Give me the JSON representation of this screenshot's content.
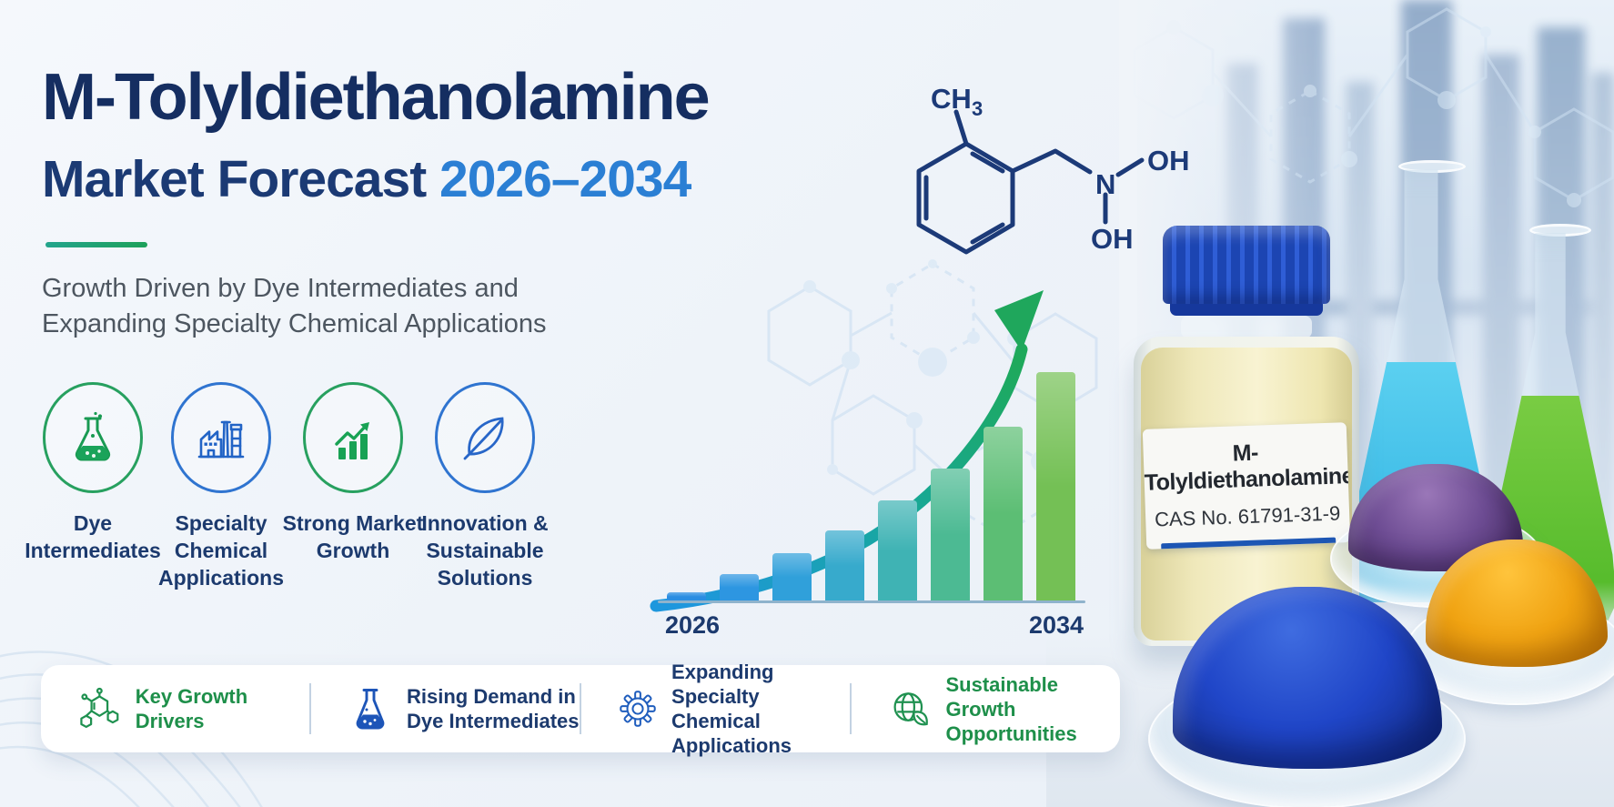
{
  "header": {
    "title": "M-Tolyldiethanolamine",
    "subtitle_prefix": "Market Forecast",
    "subtitle_years": "2026–2034",
    "tagline_line1": "Growth Driven by Dye Intermediates and",
    "tagline_line2": "Expanding Specialty Chemical Applications"
  },
  "features": [
    {
      "icon": "flask-icon",
      "accent": "green",
      "lines": [
        "Dye",
        "Intermediates"
      ]
    },
    {
      "icon": "factory-icon",
      "accent": "blue",
      "lines": [
        "Specialty",
        "Chemical",
        "Applications"
      ]
    },
    {
      "icon": "growth-chart-icon",
      "accent": "green",
      "lines": [
        "Strong Market",
        "Growth"
      ]
    },
    {
      "icon": "leaf-icon",
      "accent": "blue",
      "lines": [
        "Innovation &",
        "Sustainable",
        "Solutions"
      ]
    }
  ],
  "chart_data": {
    "type": "bar",
    "description": "Stylized market growth bars with upward curved trend arrow, no numeric axis shown",
    "tick_labels": [
      "2026",
      "2034"
    ],
    "bar_count": 8,
    "relative_heights_pct": [
      4,
      12,
      21,
      31,
      44,
      58,
      76,
      100
    ],
    "bar_colors": [
      "#2a8de2",
      "#2d96e1",
      "#30a0da",
      "#37aacc",
      "#3fb3b4",
      "#4cba93",
      "#5cbe74",
      "#74c055"
    ],
    "arrow_gradient": [
      "#1e97dd",
      "#1ea95b"
    ],
    "grid": false,
    "legend": false
  },
  "molecule": {
    "ch": "CH",
    "ch_subscript": "3",
    "n": "N",
    "oh_top": "OH",
    "oh_bottom": "OH"
  },
  "bottle": {
    "label_title": "M-Tolyldiethanolamine",
    "label_cas": "CAS No. 61791-31-9"
  },
  "footer": {
    "items": [
      {
        "icon": "molecule-icon",
        "accent": "green",
        "lines": [
          "Key Growth Drivers"
        ]
      },
      {
        "icon": "flask-icon",
        "accent": "navy",
        "lines": [
          "Rising Demand in",
          "Dye Intermediates"
        ]
      },
      {
        "icon": "gear-icon",
        "accent": "navy",
        "lines": [
          "Expanding Specialty",
          "Chemical Applications"
        ]
      },
      {
        "icon": "globe-leaf-icon",
        "accent": "green",
        "lines": [
          "Sustainable Growth",
          "Opportunities"
        ]
      }
    ]
  },
  "palette": {
    "title_navy": "#152e61",
    "accent_blue": "#2b7fd4",
    "accent_green": "#1ea15a",
    "tagline_gray": "#4d5660",
    "footer_green": "#1e8f4a",
    "footer_navy": "#1c3a6e",
    "bottle_cap_blue": "#1e4cc0",
    "label_stripe_blue": "#1d56b4"
  }
}
